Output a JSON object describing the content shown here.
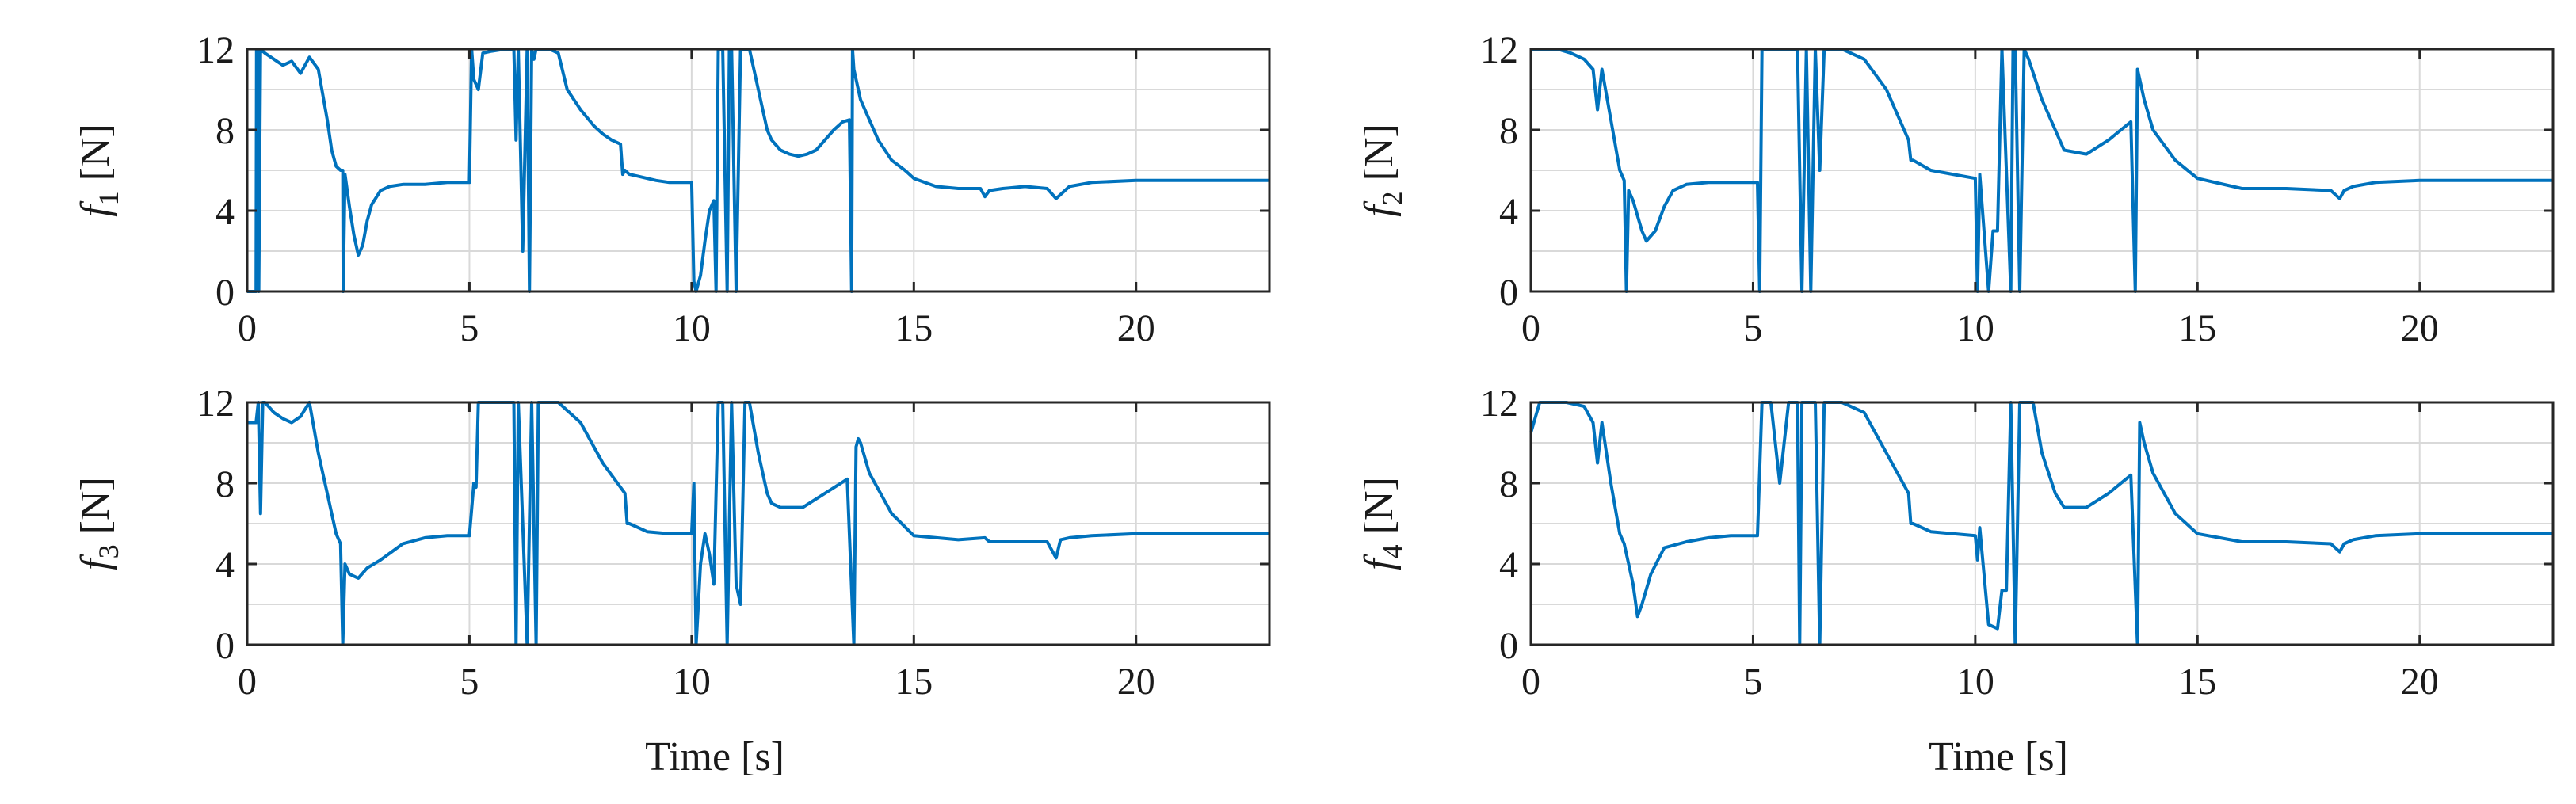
{
  "chart_data": [
    {
      "type": "line",
      "ylabel_var": "f",
      "ylabel_sub": "1",
      "ylabel_unit": " [N]",
      "xlabel": "",
      "xlim": [
        0,
        23
      ],
      "ylim": [
        0,
        12
      ],
      "xticks": [
        0,
        5,
        10,
        15,
        20
      ],
      "yticks": [
        0,
        4,
        8,
        12
      ],
      "grid": true,
      "color": "#0072BD",
      "x": [
        0.0,
        0.2,
        0.21,
        0.25,
        0.26,
        0.3,
        0.4,
        0.6,
        0.8,
        1.0,
        1.2,
        1.4,
        1.6,
        1.8,
        1.9,
        1.95,
        2.0,
        2.1,
        2.15,
        2.16,
        2.2,
        2.3,
        2.4,
        2.5,
        2.6,
        2.7,
        2.8,
        3.0,
        3.2,
        3.5,
        4.0,
        4.5,
        5.0,
        5.05,
        5.1,
        5.2,
        5.3,
        5.5,
        5.8,
        6.0,
        6.05,
        6.1,
        6.2,
        6.3,
        6.35,
        6.4,
        6.45,
        6.5,
        6.6,
        6.8,
        7.0,
        7.2,
        7.5,
        7.8,
        8.0,
        8.2,
        8.4,
        8.45,
        8.5,
        8.6,
        8.8,
        9.0,
        9.2,
        9.5,
        9.8,
        10.0,
        10.05,
        10.1,
        10.2,
        10.3,
        10.4,
        10.5,
        10.55,
        10.6,
        10.7,
        10.8,
        10.85,
        10.9,
        11.0,
        11.1,
        11.15,
        11.2,
        11.3,
        11.5,
        11.7,
        11.8,
        12.0,
        12.2,
        12.4,
        12.6,
        12.8,
        13.0,
        13.2,
        13.4,
        13.55,
        13.6,
        13.62,
        13.65,
        13.7,
        13.8,
        14.0,
        14.2,
        14.5,
        14.8,
        15.0,
        15.5,
        16.0,
        16.5,
        16.6,
        16.7,
        17.0,
        17.5,
        18.0,
        18.2,
        18.3,
        18.5,
        19.0,
        20.0,
        21.0,
        22.0,
        23.0
      ],
      "y": [
        0.0,
        0.0,
        12.0,
        12.0,
        0.0,
        12.0,
        11.8,
        11.5,
        11.2,
        11.4,
        10.8,
        11.6,
        11.0,
        8.5,
        7.0,
        6.6,
        6.2,
        6.0,
        6.0,
        0.0,
        5.8,
        4.2,
        2.8,
        1.8,
        2.3,
        3.5,
        4.3,
        5.0,
        5.2,
        5.3,
        5.3,
        5.4,
        5.4,
        12.0,
        10.5,
        10.0,
        11.8,
        11.9,
        12.0,
        12.0,
        7.5,
        12.0,
        2.0,
        12.0,
        0.0,
        12.0,
        11.5,
        12.0,
        12.0,
        12.0,
        11.8,
        10.0,
        9.0,
        8.2,
        7.8,
        7.5,
        7.3,
        5.8,
        6.0,
        5.8,
        5.7,
        5.6,
        5.5,
        5.4,
        5.4,
        5.4,
        0.5,
        0.0,
        0.8,
        2.5,
        4.0,
        4.5,
        0.0,
        12.0,
        12.0,
        0.0,
        12.0,
        12.0,
        0.0,
        12.0,
        12.0,
        12.0,
        12.0,
        10.0,
        8.0,
        7.5,
        7.0,
        6.8,
        6.7,
        6.8,
        7.0,
        7.5,
        8.0,
        8.4,
        8.5,
        0.0,
        12.0,
        11.0,
        10.5,
        9.5,
        8.5,
        7.5,
        6.5,
        6.0,
        5.6,
        5.2,
        5.1,
        5.1,
        4.7,
        5.0,
        5.1,
        5.2,
        5.1,
        4.6,
        4.8,
        5.2,
        5.4,
        5.5,
        5.5,
        5.5,
        5.5
      ]
    },
    {
      "type": "line",
      "ylabel_var": "f",
      "ylabel_sub": "2",
      "ylabel_unit": " [N]",
      "xlabel": "",
      "xlim": [
        0,
        23
      ],
      "ylim": [
        0,
        12
      ],
      "xticks": [
        0,
        5,
        10,
        15,
        20
      ],
      "yticks": [
        0,
        4,
        8,
        12
      ],
      "grid": true,
      "color": "#0072BD",
      "x": [
        0.0,
        0.2,
        0.3,
        0.6,
        0.9,
        1.2,
        1.4,
        1.5,
        1.6,
        1.8,
        2.0,
        2.1,
        2.15,
        2.2,
        2.3,
        2.5,
        2.6,
        2.8,
        3.0,
        3.2,
        3.5,
        4.0,
        4.5,
        5.0,
        5.1,
        5.15,
        5.2,
        5.5,
        5.8,
        6.0,
        6.1,
        6.2,
        6.3,
        6.4,
        6.5,
        6.6,
        6.7,
        6.8,
        7.0,
        7.5,
        8.0,
        8.5,
        8.55,
        8.6,
        9.0,
        9.5,
        10.0,
        10.05,
        10.1,
        10.3,
        10.4,
        10.5,
        10.6,
        10.8,
        10.85,
        10.9,
        11.0,
        11.1,
        11.2,
        11.5,
        11.8,
        12.0,
        12.5,
        13.0,
        13.5,
        13.6,
        13.65,
        13.7,
        13.8,
        14.0,
        14.5,
        15.0,
        16.0,
        17.0,
        18.0,
        18.2,
        18.3,
        18.5,
        19.0,
        20.0,
        22.0,
        23.0
      ],
      "y": [
        12.0,
        12.0,
        12.0,
        12.0,
        11.8,
        11.5,
        11.0,
        9.0,
        11.0,
        8.5,
        6.0,
        5.5,
        0.0,
        5.0,
        4.5,
        3.0,
        2.5,
        3.0,
        4.2,
        5.0,
        5.3,
        5.4,
        5.4,
        5.4,
        5.4,
        0.0,
        12.0,
        12.0,
        12.0,
        12.0,
        0.0,
        12.0,
        0.0,
        12.0,
        6.0,
        12.0,
        12.0,
        12.0,
        12.0,
        11.5,
        10.0,
        7.5,
        6.5,
        6.5,
        6.0,
        5.8,
        5.6,
        0.0,
        5.8,
        0.0,
        3.0,
        3.0,
        12.0,
        0.0,
        12.0,
        12.0,
        0.0,
        12.0,
        11.5,
        9.5,
        8.0,
        7.0,
        6.8,
        7.5,
        8.4,
        0.0,
        11.0,
        10.5,
        9.5,
        8.0,
        6.5,
        5.6,
        5.1,
        5.1,
        5.0,
        4.6,
        5.0,
        5.2,
        5.4,
        5.5,
        5.5,
        5.5
      ]
    },
    {
      "type": "line",
      "ylabel_var": "f",
      "ylabel_sub": "3",
      "ylabel_unit": " [N]",
      "xlabel": "Time [s]",
      "xlim": [
        0,
        23
      ],
      "ylim": [
        0,
        12
      ],
      "xticks": [
        0,
        5,
        10,
        15,
        20
      ],
      "yticks": [
        0,
        4,
        8,
        12
      ],
      "grid": true,
      "color": "#0072BD",
      "x": [
        0.0,
        0.2,
        0.25,
        0.3,
        0.35,
        0.4,
        0.6,
        0.8,
        1.0,
        1.2,
        1.4,
        1.6,
        1.8,
        2.0,
        2.1,
        2.15,
        2.2,
        2.3,
        2.5,
        2.7,
        3.0,
        3.5,
        4.0,
        4.5,
        5.0,
        5.1,
        5.15,
        5.2,
        5.5,
        5.8,
        6.0,
        6.05,
        6.1,
        6.3,
        6.4,
        6.5,
        6.55,
        6.6,
        6.8,
        7.0,
        7.5,
        8.0,
        8.5,
        8.55,
        8.6,
        9.0,
        9.5,
        10.0,
        10.05,
        10.1,
        10.2,
        10.3,
        10.4,
        10.5,
        10.6,
        10.7,
        10.8,
        10.9,
        11.0,
        11.1,
        11.2,
        11.3,
        11.5,
        11.7,
        11.8,
        12.0,
        12.5,
        13.0,
        13.5,
        13.65,
        13.7,
        13.75,
        13.8,
        14.0,
        14.5,
        15.0,
        16.0,
        16.6,
        16.7,
        17.0,
        18.0,
        18.2,
        18.3,
        18.5,
        19.0,
        20.0,
        22.0,
        23.0
      ],
      "y": [
        11.0,
        11.0,
        12.0,
        6.5,
        12.0,
        12.0,
        11.5,
        11.2,
        11.0,
        11.3,
        12.0,
        9.5,
        7.5,
        5.5,
        5.0,
        0.0,
        4.0,
        3.5,
        3.3,
        3.8,
        4.2,
        5.0,
        5.3,
        5.4,
        5.4,
        8.0,
        7.8,
        12.0,
        12.0,
        12.0,
        12.0,
        0.0,
        12.0,
        0.0,
        12.0,
        0.0,
        12.0,
        12.0,
        12.0,
        12.0,
        11.0,
        9.0,
        7.5,
        6.0,
        6.0,
        5.6,
        5.5,
        5.5,
        8.0,
        0.0,
        4.0,
        5.5,
        4.5,
        3.0,
        12.0,
        12.0,
        0.0,
        12.0,
        3.0,
        2.0,
        12.0,
        12.0,
        9.5,
        7.5,
        7.0,
        6.8,
        6.8,
        7.5,
        8.2,
        0.0,
        9.8,
        10.2,
        10.0,
        8.5,
        6.5,
        5.4,
        5.2,
        5.3,
        5.1,
        5.1,
        5.1,
        4.3,
        5.2,
        5.3,
        5.4,
        5.5,
        5.5,
        5.5
      ]
    },
    {
      "type": "line",
      "ylabel_var": "f",
      "ylabel_sub": "4",
      "ylabel_unit": " [N]",
      "xlabel": "Time [s]",
      "xlim": [
        0,
        23
      ],
      "ylim": [
        0,
        12
      ],
      "xticks": [
        0,
        5,
        10,
        15,
        20
      ],
      "yticks": [
        0,
        4,
        8,
        12
      ],
      "grid": true,
      "color": "#0072BD",
      "x": [
        0.0,
        0.2,
        0.4,
        0.8,
        1.2,
        1.4,
        1.5,
        1.6,
        1.8,
        2.0,
        2.1,
        2.2,
        2.3,
        2.4,
        2.5,
        2.7,
        3.0,
        3.5,
        4.0,
        4.5,
        5.0,
        5.1,
        5.2,
        5.4,
        5.6,
        5.8,
        6.0,
        6.05,
        6.1,
        6.4,
        6.5,
        6.6,
        6.7,
        7.0,
        7.5,
        8.0,
        8.5,
        8.55,
        8.6,
        9.0,
        9.5,
        10.0,
        10.05,
        10.1,
        10.3,
        10.5,
        10.6,
        10.7,
        10.8,
        10.9,
        11.0,
        11.1,
        11.3,
        11.5,
        11.8,
        12.0,
        12.5,
        13.0,
        13.5,
        13.65,
        13.7,
        13.8,
        14.0,
        14.5,
        15.0,
        16.0,
        17.0,
        18.0,
        18.2,
        18.3,
        18.5,
        19.0,
        20.0,
        22.0,
        23.0
      ],
      "y": [
        10.5,
        12.0,
        12.0,
        12.0,
        11.8,
        11.0,
        9.0,
        11.0,
        8.0,
        5.5,
        5.0,
        4.0,
        3.0,
        1.4,
        2.0,
        3.5,
        4.8,
        5.1,
        5.3,
        5.4,
        5.4,
        5.4,
        12.0,
        12.0,
        8.0,
        12.0,
        12.0,
        0.0,
        12.0,
        12.0,
        0.0,
        12.0,
        12.0,
        12.0,
        11.5,
        9.5,
        7.5,
        6.0,
        6.0,
        5.6,
        5.5,
        5.4,
        4.2,
        5.8,
        1.0,
        0.8,
        2.7,
        2.7,
        12.0,
        0.0,
        12.0,
        12.0,
        12.0,
        9.5,
        7.5,
        6.8,
        6.8,
        7.5,
        8.4,
        0.0,
        11.0,
        10.0,
        8.5,
        6.5,
        5.5,
        5.1,
        5.1,
        5.0,
        4.6,
        5.0,
        5.2,
        5.4,
        5.5,
        5.5,
        5.5
      ]
    }
  ]
}
